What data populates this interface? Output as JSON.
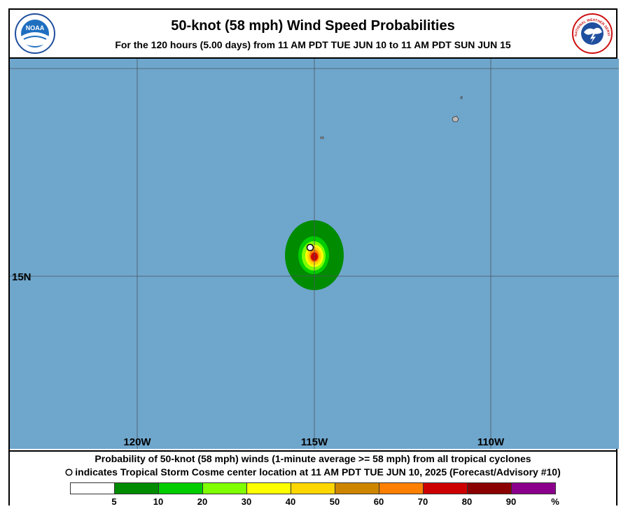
{
  "header": {
    "title": "50-knot (58 mph) Wind Speed Probabilities",
    "subtitle": "For the 120 hours (5.00 days) from 11 AM PDT TUE JUN 10 to 11 AM PDT SUN JUN 15",
    "logo_left_text": "NOAA",
    "logo_right_text": "NATIONAL WEATHER SERVICE"
  },
  "map": {
    "ocean_color": "#6fa6cc",
    "land_color": "#bbbbbb",
    "longitude_labels": [
      "120W",
      "115W",
      "110W"
    ],
    "latitude_labels": [
      "15N"
    ],
    "storm_center": {
      "name": "Tropical Storm Cosme",
      "lon": -115.1,
      "lat": 15.7
    }
  },
  "footer": {
    "line1": "Probability of 50-knot (58 mph) winds (1-minute average >= 58 mph) from all tropical cyclones",
    "line2": "indicates Tropical Storm Cosme center location at 11 AM PDT TUE JUN 10, 2025 (Forecast/Advisory #10)"
  },
  "legend": {
    "colors": [
      "#ffffff",
      "#008b00",
      "#00cd00",
      "#7fff00",
      "#ffff00",
      "#ffd700",
      "#cd8500",
      "#ff7f00",
      "#cd0000",
      "#8b0000",
      "#8b008b"
    ],
    "labels": [
      "5",
      "10",
      "20",
      "30",
      "40",
      "50",
      "60",
      "70",
      "80",
      "90",
      "%"
    ]
  }
}
